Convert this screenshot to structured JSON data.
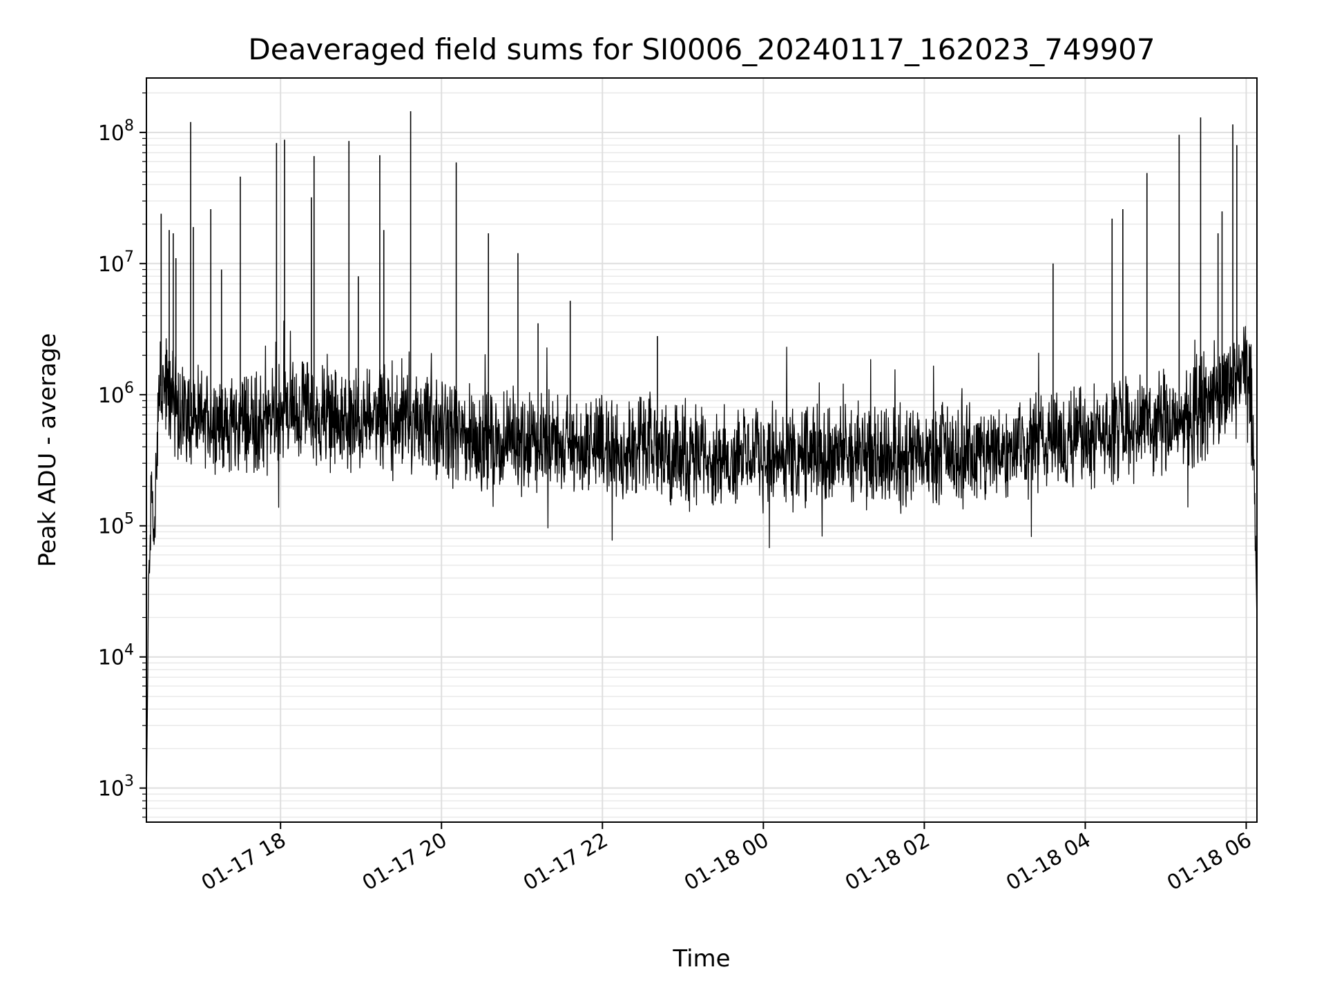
{
  "chart_data": {
    "type": "line",
    "title": "Deaveraged field sums for SI0006_20240117_162023_749907",
    "xlabel": "Time",
    "ylabel": "Peak ADU - average",
    "yscale": "log",
    "ylim": [
      550,
      260000000
    ],
    "xlim": [
      "2024-01-17 16:20",
      "2024-01-18 06:08"
    ],
    "x_ticks": [
      {
        "t": "2024-01-17 18:00",
        "label": "01-17 18"
      },
      {
        "t": "2024-01-17 20:00",
        "label": "01-17 20"
      },
      {
        "t": "2024-01-17 22:00",
        "label": "01-17 22"
      },
      {
        "t": "2024-01-18 00:00",
        "label": "01-18 00"
      },
      {
        "t": "2024-01-18 02:00",
        "label": "01-18 02"
      },
      {
        "t": "2024-01-18 04:00",
        "label": "01-18 04"
      },
      {
        "t": "2024-01-18 06:00",
        "label": "01-18 06"
      }
    ],
    "y_ticks": [
      {
        "value": 1000,
        "base": "10",
        "exp": "3"
      },
      {
        "value": 10000,
        "base": "10",
        "exp": "4"
      },
      {
        "value": 100000,
        "base": "10",
        "exp": "5"
      },
      {
        "value": 1000000,
        "base": "10",
        "exp": "6"
      },
      {
        "value": 10000000,
        "base": "10",
        "exp": "7"
      },
      {
        "value": 100000000,
        "base": "10",
        "exp": "8"
      }
    ],
    "grid": true,
    "minor_grid": true,
    "legend": "none",
    "line_color": "#000000",
    "series": [
      {
        "x": [
          "2024-01-17 16:20",
          "2024-01-17 16:22",
          "2024-01-17 16:24",
          "2024-01-17 16:26",
          "2024-01-17 16:28",
          "2024-01-17 16:30",
          "2024-01-17 16:40",
          "2024-01-17 16:50",
          "2024-01-17 17:00",
          "2024-01-17 17:10",
          "2024-01-17 17:20",
          "2024-01-17 17:30",
          "2024-01-17 17:40",
          "2024-01-17 17:50",
          "2024-01-17 18:00",
          "2024-01-17 18:10",
          "2024-01-17 18:20",
          "2024-01-17 18:30",
          "2024-01-17 18:40",
          "2024-01-17 18:50",
          "2024-01-17 19:00",
          "2024-01-17 19:10",
          "2024-01-17 19:20",
          "2024-01-17 19:30",
          "2024-01-17 19:40",
          "2024-01-17 19:50",
          "2024-01-17 20:00",
          "2024-01-17 20:10",
          "2024-01-17 20:20",
          "2024-01-17 20:30",
          "2024-01-17 20:40",
          "2024-01-17 20:50",
          "2024-01-17 21:00",
          "2024-01-17 21:10",
          "2024-01-17 21:20",
          "2024-01-17 21:30",
          "2024-01-17 21:40",
          "2024-01-17 21:50",
          "2024-01-17 22:00",
          "2024-01-17 22:10",
          "2024-01-17 22:20",
          "2024-01-17 22:30",
          "2024-01-17 22:40",
          "2024-01-17 22:50",
          "2024-01-17 23:00",
          "2024-01-17 23:10",
          "2024-01-17 23:20",
          "2024-01-17 23:30",
          "2024-01-17 23:40",
          "2024-01-17 23:50",
          "2024-01-18 00:00",
          "2024-01-18 00:10",
          "2024-01-18 00:20",
          "2024-01-18 00:30",
          "2024-01-18 00:40",
          "2024-01-18 00:50",
          "2024-01-18 01:00",
          "2024-01-18 01:10",
          "2024-01-18 01:20",
          "2024-01-18 01:30",
          "2024-01-18 01:40",
          "2024-01-18 01:50",
          "2024-01-18 02:00",
          "2024-01-18 02:10",
          "2024-01-18 02:20",
          "2024-01-18 02:30",
          "2024-01-18 02:40",
          "2024-01-18 02:50",
          "2024-01-18 03:00",
          "2024-01-18 03:10",
          "2024-01-18 03:20",
          "2024-01-18 03:30",
          "2024-01-18 03:40",
          "2024-01-18 03:50",
          "2024-01-18 04:00",
          "2024-01-18 04:10",
          "2024-01-18 04:20",
          "2024-01-18 04:30",
          "2024-01-18 04:40",
          "2024-01-18 04:50",
          "2024-01-18 05:00",
          "2024-01-18 05:10",
          "2024-01-18 05:20",
          "2024-01-18 05:30",
          "2024-01-18 05:40",
          "2024-01-18 05:50",
          "2024-01-18 06:00",
          "2024-01-18 06:04",
          "2024-01-18 06:06",
          "2024-01-18 06:08"
        ],
        "y": [
          800,
          60000,
          200000,
          70000,
          400000,
          1200000,
          900000,
          700000,
          650000,
          600000,
          580000,
          620000,
          650000,
          600000,
          700000,
          750000,
          800000,
          700000,
          650000,
          600000,
          620000,
          650000,
          700000,
          600000,
          650000,
          550000,
          520000,
          480000,
          470000,
          450000,
          460000,
          440000,
          450000,
          430000,
          440000,
          420000,
          410000,
          400000,
          420000,
          390000,
          380000,
          400000,
          380000,
          370000,
          360000,
          350000,
          360000,
          340000,
          350000,
          360000,
          340000,
          350000,
          330000,
          340000,
          350000,
          330000,
          340000,
          350000,
          330000,
          340000,
          320000,
          330000,
          340000,
          330000,
          350000,
          340000,
          360000,
          370000,
          380000,
          400000,
          420000,
          430000,
          440000,
          460000,
          480000,
          500000,
          520000,
          550000,
          560000,
          600000,
          620000,
          650000,
          700000,
          800000,
          900000,
          1200000,
          1500000,
          900000,
          300000,
          18000
        ]
      }
    ],
    "spikes": [
      {
        "t": "2024-01-17 16:31",
        "y": 24000000
      },
      {
        "t": "2024-01-17 16:37",
        "y": 18000000
      },
      {
        "t": "2024-01-17 16:40",
        "y": 17000000
      },
      {
        "t": "2024-01-17 16:42",
        "y": 11000000
      },
      {
        "t": "2024-01-17 16:53",
        "y": 120000000
      },
      {
        "t": "2024-01-17 16:55",
        "y": 19000000
      },
      {
        "t": "2024-01-17 17:08",
        "y": 26000000
      },
      {
        "t": "2024-01-17 17:16",
        "y": 9000000
      },
      {
        "t": "2024-01-17 17:30",
        "y": 46000000
      },
      {
        "t": "2024-01-17 17:57",
        "y": 83000000
      },
      {
        "t": "2024-01-17 18:03",
        "y": 88000000
      },
      {
        "t": "2024-01-17 18:23",
        "y": 32000000
      },
      {
        "t": "2024-01-17 18:25",
        "y": 66000000
      },
      {
        "t": "2024-01-17 18:51",
        "y": 86000000
      },
      {
        "t": "2024-01-17 18:58",
        "y": 8000000
      },
      {
        "t": "2024-01-17 19:14",
        "y": 67000000
      },
      {
        "t": "2024-01-17 19:17",
        "y": 18000000
      },
      {
        "t": "2024-01-17 19:37",
        "y": 145000000
      },
      {
        "t": "2024-01-17 20:11",
        "y": 59000000
      },
      {
        "t": "2024-01-17 20:35",
        "y": 17000000
      },
      {
        "t": "2024-01-17 20:57",
        "y": 12000000
      },
      {
        "t": "2024-01-17 21:12",
        "y": 3500000
      },
      {
        "t": "2024-01-17 21:36",
        "y": 5200000
      },
      {
        "t": "2024-01-17 22:41",
        "y": 2800000
      },
      {
        "t": "2024-01-18 03:36",
        "y": 10000000
      },
      {
        "t": "2024-01-18 04:20",
        "y": 22000000
      },
      {
        "t": "2024-01-18 04:28",
        "y": 26000000
      },
      {
        "t": "2024-01-18 04:46",
        "y": 49000000
      },
      {
        "t": "2024-01-18 05:10",
        "y": 96000000
      },
      {
        "t": "2024-01-18 05:26",
        "y": 130000000
      },
      {
        "t": "2024-01-18 05:39",
        "y": 17000000
      },
      {
        "t": "2024-01-18 05:42",
        "y": 25000000
      },
      {
        "t": "2024-01-18 05:50",
        "y": 115000000
      },
      {
        "t": "2024-01-18 05:53",
        "y": 80000000
      }
    ]
  }
}
